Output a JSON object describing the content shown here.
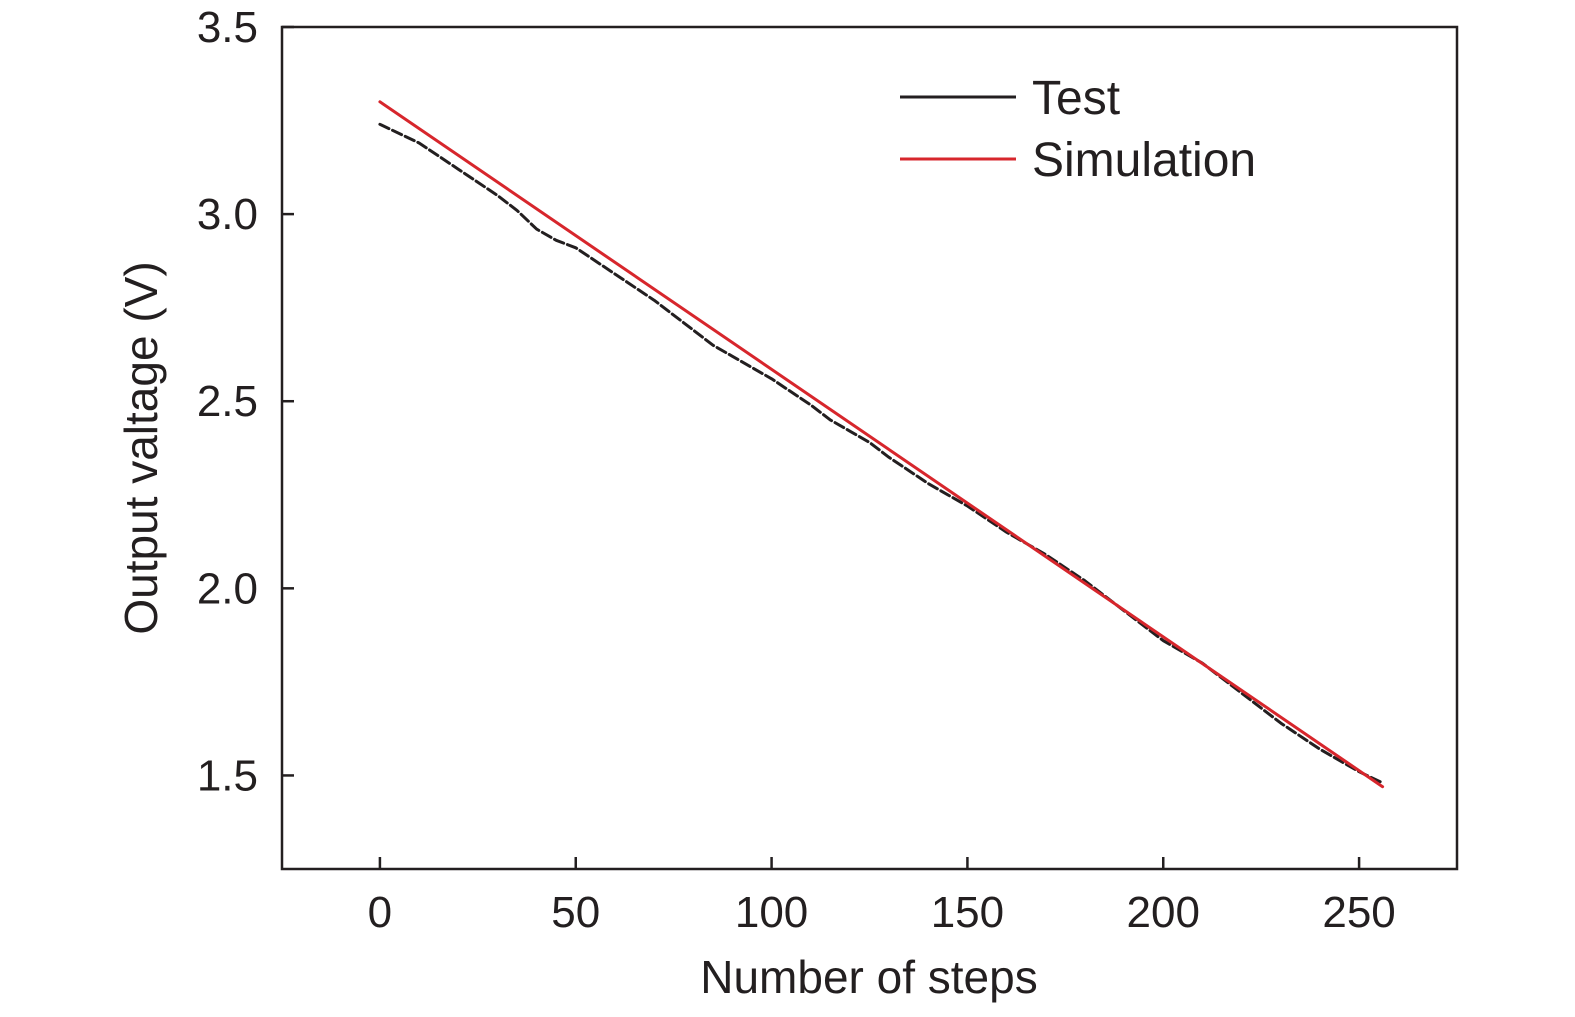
{
  "chart_data": {
    "type": "line",
    "title": "",
    "xlabel": "Number of steps",
    "ylabel": "Output valtage (V)",
    "xlim": [
      -25,
      275
    ],
    "ylim": [
      1.25,
      3.5
    ],
    "xticks": [
      0,
      50,
      100,
      150,
      200,
      250
    ],
    "xtick_labels": [
      "0",
      "50",
      "100",
      "150",
      "200",
      "250"
    ],
    "yticks": [
      1.5,
      2.0,
      2.5,
      3.0,
      3.5
    ],
    "ytick_labels": [
      "1.5",
      "2.0",
      "2.5",
      "3.0",
      "3.5"
    ],
    "grid": false,
    "legend": {
      "position": "top-right",
      "entries": [
        "Test",
        "Simulation"
      ]
    },
    "series": [
      {
        "name": "Test",
        "color": "#231f20",
        "style": "dashed",
        "x": [
          0,
          10,
          20,
          30,
          35,
          40,
          45,
          50,
          60,
          70,
          80,
          85,
          90,
          100,
          110,
          115,
          120,
          125,
          130,
          140,
          145,
          150,
          160,
          170,
          180,
          190,
          200,
          210,
          220,
          230,
          240,
          250,
          256
        ],
        "y": [
          3.24,
          3.19,
          3.12,
          3.05,
          3.01,
          2.96,
          2.93,
          2.91,
          2.84,
          2.77,
          2.69,
          2.65,
          2.62,
          2.56,
          2.49,
          2.45,
          2.42,
          2.39,
          2.35,
          2.28,
          2.25,
          2.22,
          2.15,
          2.09,
          2.02,
          1.94,
          1.86,
          1.8,
          1.72,
          1.64,
          1.57,
          1.51,
          1.48
        ]
      },
      {
        "name": "Simulation",
        "color": "#d7262c",
        "style": "solid",
        "x": [
          0,
          256
        ],
        "y": [
          3.3,
          1.47
        ]
      }
    ]
  }
}
